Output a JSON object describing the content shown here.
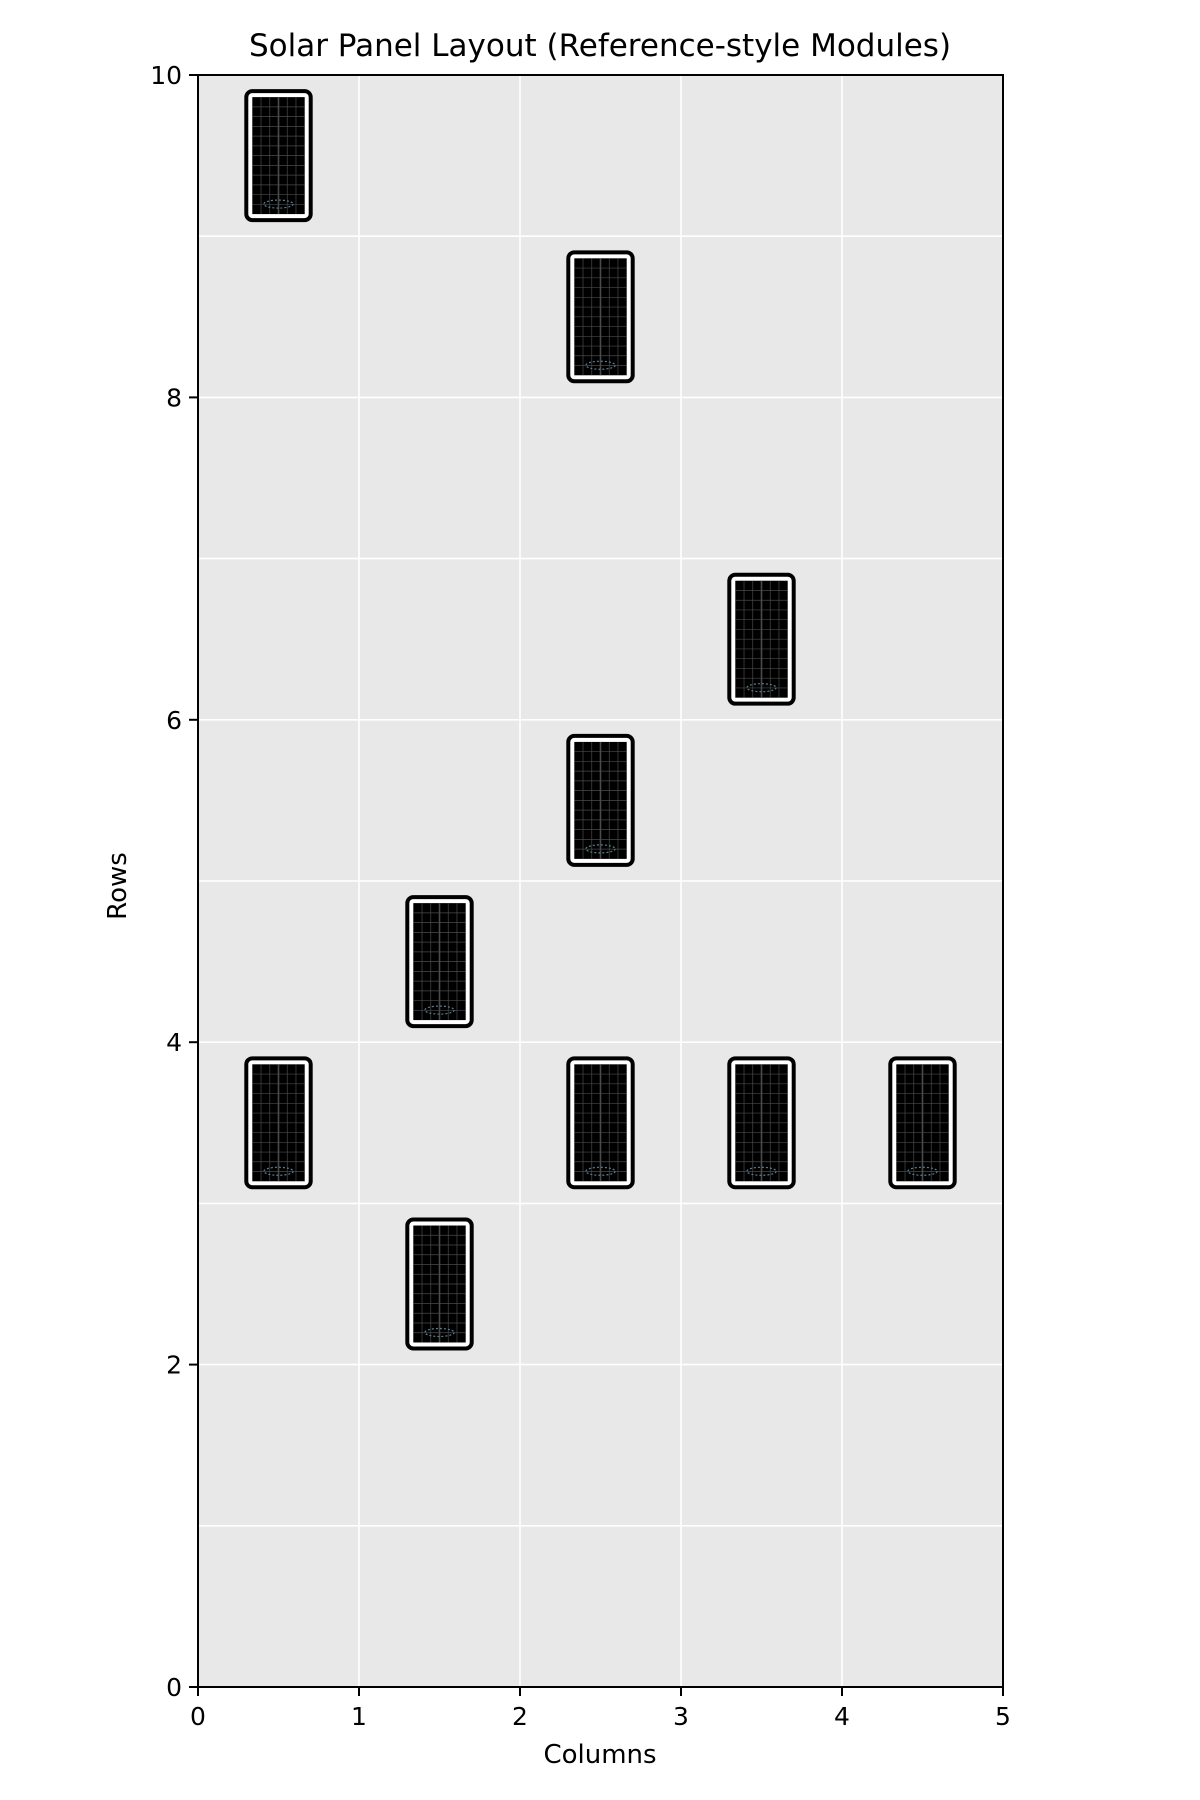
{
  "chart_data": {
    "type": "scatter",
    "title": "Solar Panel Layout (Reference-style Modules)",
    "xlabel": "Columns",
    "ylabel": "Rows",
    "xlim": [
      0,
      5
    ],
    "ylim": [
      0,
      10
    ],
    "xticks": [
      0,
      1,
      2,
      3,
      4,
      5
    ],
    "yticks": [
      0,
      2,
      4,
      6,
      8,
      10
    ],
    "grid": true,
    "background_color": "#e8e8e8",
    "grid_color": "#ffffff",
    "panel_color": "#000000",
    "panel_frame_color": "#ffffff",
    "panel_grid_color": "#4a4a4a",
    "panel_accent_color": "#5a7f8f",
    "panel_size": {
      "width_cells": 0.4,
      "height_cells": 0.8
    },
    "modules": [
      {
        "col": 0,
        "row": 9
      },
      {
        "col": 2,
        "row": 8
      },
      {
        "col": 3,
        "row": 6
      },
      {
        "col": 2,
        "row": 5
      },
      {
        "col": 1,
        "row": 4
      },
      {
        "col": 0,
        "row": 3
      },
      {
        "col": 2,
        "row": 3
      },
      {
        "col": 3,
        "row": 3
      },
      {
        "col": 4,
        "row": 3
      },
      {
        "col": 1,
        "row": 2
      }
    ]
  }
}
